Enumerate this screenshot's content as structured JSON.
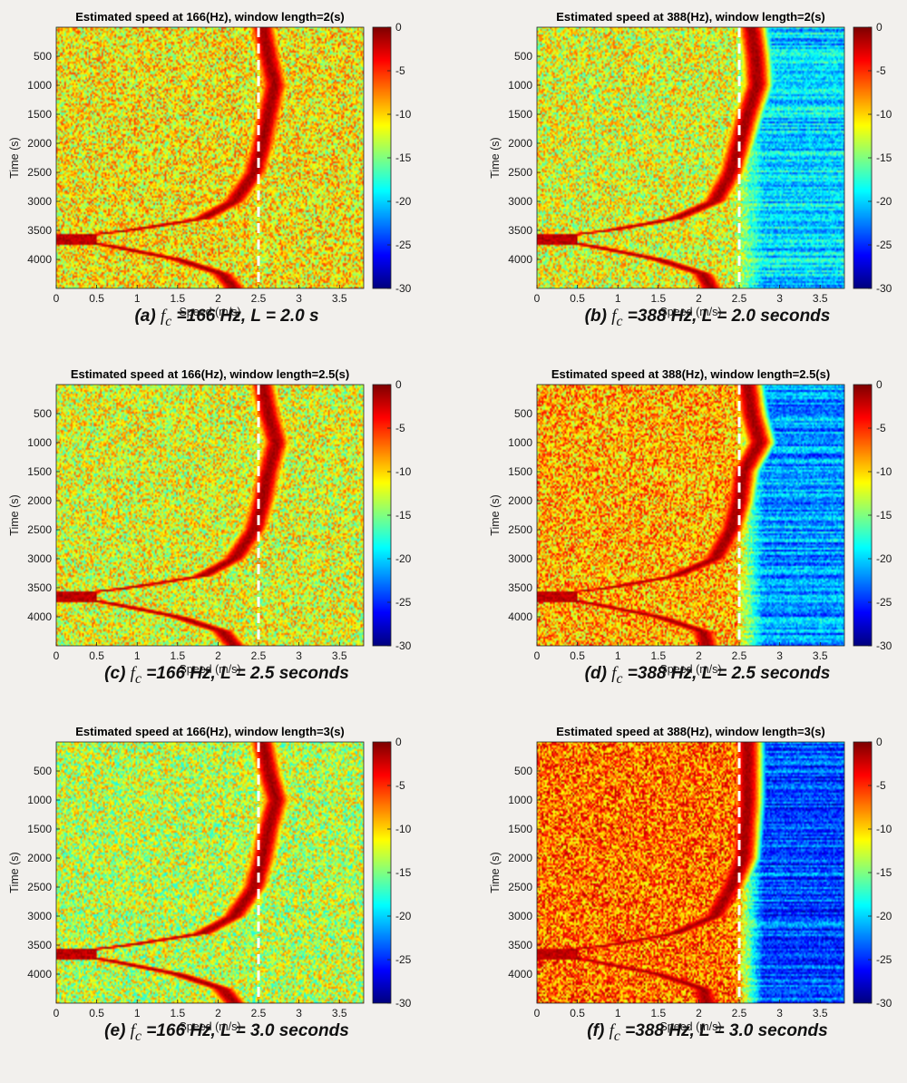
{
  "figure": {
    "x_ticks": [
      "0",
      "0.5",
      "1",
      "1.5",
      "2",
      "2.5",
      "3",
      "3.5"
    ],
    "y_ticks": [
      "500",
      "1000",
      "1500",
      "2000",
      "2500",
      "3000",
      "3500",
      "4000"
    ],
    "cb_ticks": [
      "0",
      "-5",
      "-10",
      "-15",
      "-20",
      "-25",
      "-30"
    ],
    "xlabel": "Speed (m/s)",
    "ylabel": "Time (s)"
  },
  "panels": [
    {
      "title": "Estimated speed at 166(Hz), window length=2(s)",
      "caption": {
        "pre": "(a) ",
        "math": "f",
        "sub": "c",
        "post": " =166 Hz, L = 2.0 s"
      }
    },
    {
      "title": "Estimated speed at 388(Hz), window length=2(s)",
      "caption": {
        "pre": "(b) ",
        "math": "f",
        "sub": "c",
        "post": " =388 Hz, L = 2.0 seconds"
      }
    },
    {
      "title": "Estimated speed at 166(Hz), window length=2.5(s)",
      "caption": {
        "pre": "(c) ",
        "math": "f",
        "sub": "c",
        "post": " =166 Hz, L = 2.5 seconds"
      }
    },
    {
      "title": "Estimated speed at 388(Hz), window length=2.5(s)",
      "caption": {
        "pre": "(d) ",
        "math": "f",
        "sub": "c",
        "post": " =388 Hz, L = 2.5 seconds"
      }
    },
    {
      "title": "Estimated speed at 166(Hz), window length=3(s)",
      "caption": {
        "pre": "(e) ",
        "math": "f",
        "sub": "c",
        "post": " =166 Hz, L = 3.0 seconds"
      }
    },
    {
      "title": "Estimated speed at 388(Hz), window length=3(s)",
      "caption": {
        "pre": "(f) ",
        "math": "f",
        "sub": "c",
        "post": " =388 Hz, L = 3.0 seconds"
      }
    }
  ],
  "chart_data": [
    {
      "type": "heatmap",
      "colormap": "jet",
      "clim": [
        -30,
        0
      ],
      "title": "Estimated speed at 166(Hz), window length=2(s)",
      "xlabel": "Speed (m/s)",
      "ylabel": "Time (s)",
      "xlim": [
        0,
        3.8
      ],
      "ylim": [
        0,
        4500
      ],
      "y_reversed": true,
      "reference_line_x": 2.5,
      "background_level": -11,
      "ridge": {
        "time": [
          0,
          500,
          1000,
          1500,
          2000,
          2500,
          3000,
          3300,
          3500,
          3650,
          3750,
          4000,
          4250,
          4500
        ],
        "speed": [
          2.55,
          2.62,
          2.7,
          2.62,
          2.55,
          2.45,
          2.2,
          1.8,
          0.9,
          0.0,
          0.6,
          1.5,
          2.05,
          2.2
        ]
      }
    },
    {
      "type": "heatmap",
      "colormap": "jet",
      "clim": [
        -30,
        0
      ],
      "title": "Estimated speed at 388(Hz), window length=2(s)",
      "xlabel": "Speed (m/s)",
      "ylabel": "Time (s)",
      "xlim": [
        0,
        3.8
      ],
      "ylim": [
        0,
        4500
      ],
      "y_reversed": true,
      "reference_line_x": 2.5,
      "background_level": -12,
      "high_speed_level": -20,
      "ridge": {
        "time": [
          0,
          500,
          1000,
          1500,
          2000,
          2500,
          3000,
          3300,
          3500,
          3650,
          3750,
          4000,
          4250,
          4500
        ],
        "speed": [
          2.65,
          2.7,
          2.72,
          2.6,
          2.5,
          2.4,
          2.2,
          1.7,
          0.9,
          0.0,
          0.6,
          1.5,
          2.05,
          2.15
        ]
      }
    },
    {
      "type": "heatmap",
      "colormap": "jet",
      "clim": [
        -30,
        0
      ],
      "title": "Estimated speed at 166(Hz), window length=2.5(s)",
      "xlabel": "Speed (m/s)",
      "ylabel": "Time (s)",
      "xlim": [
        0,
        3.8
      ],
      "ylim": [
        0,
        4500
      ],
      "y_reversed": true,
      "reference_line_x": 2.5,
      "background_level": -12,
      "ridge": {
        "time": [
          0,
          500,
          1000,
          1500,
          2000,
          2500,
          3000,
          3300,
          3500,
          3650,
          3750,
          4000,
          4250,
          4500
        ],
        "speed": [
          2.55,
          2.62,
          2.72,
          2.62,
          2.55,
          2.45,
          2.2,
          1.8,
          0.9,
          0.0,
          0.6,
          1.5,
          2.05,
          2.2
        ]
      }
    },
    {
      "type": "heatmap",
      "colormap": "jet",
      "clim": [
        -30,
        0
      ],
      "title": "Estimated speed at 388(Hz), window length=2.5(s)",
      "xlabel": "Speed (m/s)",
      "ylabel": "Time (s)",
      "xlim": [
        0,
        3.8
      ],
      "ylim": [
        0,
        4500
      ],
      "y_reversed": true,
      "reference_line_x": 2.5,
      "background_level": -9,
      "high_speed_level": -22,
      "ridge": {
        "time": [
          0,
          500,
          1000,
          1500,
          2000,
          2500,
          3000,
          3300,
          3500,
          3650,
          3750,
          4000,
          4250,
          4500
        ],
        "speed": [
          2.6,
          2.65,
          2.75,
          2.55,
          2.5,
          2.4,
          2.2,
          1.7,
          0.9,
          0.0,
          0.6,
          1.5,
          2.05,
          2.1
        ]
      }
    },
    {
      "type": "heatmap",
      "colormap": "jet",
      "clim": [
        -30,
        0
      ],
      "title": "Estimated speed at 166(Hz), window length=3(s)",
      "xlabel": "Speed (m/s)",
      "ylabel": "Time (s)",
      "xlim": [
        0,
        3.8
      ],
      "ylim": [
        0,
        4500
      ],
      "y_reversed": true,
      "reference_line_x": 2.5,
      "background_level": -13,
      "ridge": {
        "time": [
          0,
          500,
          1000,
          1500,
          2000,
          2500,
          3000,
          3300,
          3500,
          3650,
          3750,
          4000,
          4250,
          4500
        ],
        "speed": [
          2.55,
          2.62,
          2.72,
          2.62,
          2.55,
          2.45,
          2.2,
          1.8,
          0.9,
          0.0,
          0.6,
          1.5,
          2.05,
          2.2
        ]
      }
    },
    {
      "type": "heatmap",
      "colormap": "jet",
      "clim": [
        -30,
        0
      ],
      "title": "Estimated speed at 388(Hz), window length=3(s)",
      "xlabel": "Speed (m/s)",
      "ylabel": "Time (s)",
      "xlim": [
        0,
        3.8
      ],
      "ylim": [
        0,
        4500
      ],
      "y_reversed": true,
      "reference_line_x": 2.5,
      "background_level": -7,
      "high_speed_level": -24,
      "ridge": {
        "time": [
          0,
          1000,
          2000,
          2500,
          3000,
          3300,
          3500,
          3650,
          3750,
          4000,
          4250,
          4500
        ],
        "speed": [
          2.6,
          2.6,
          2.55,
          2.4,
          2.2,
          1.7,
          0.9,
          0.0,
          0.6,
          1.5,
          2.05,
          2.1
        ]
      }
    }
  ]
}
